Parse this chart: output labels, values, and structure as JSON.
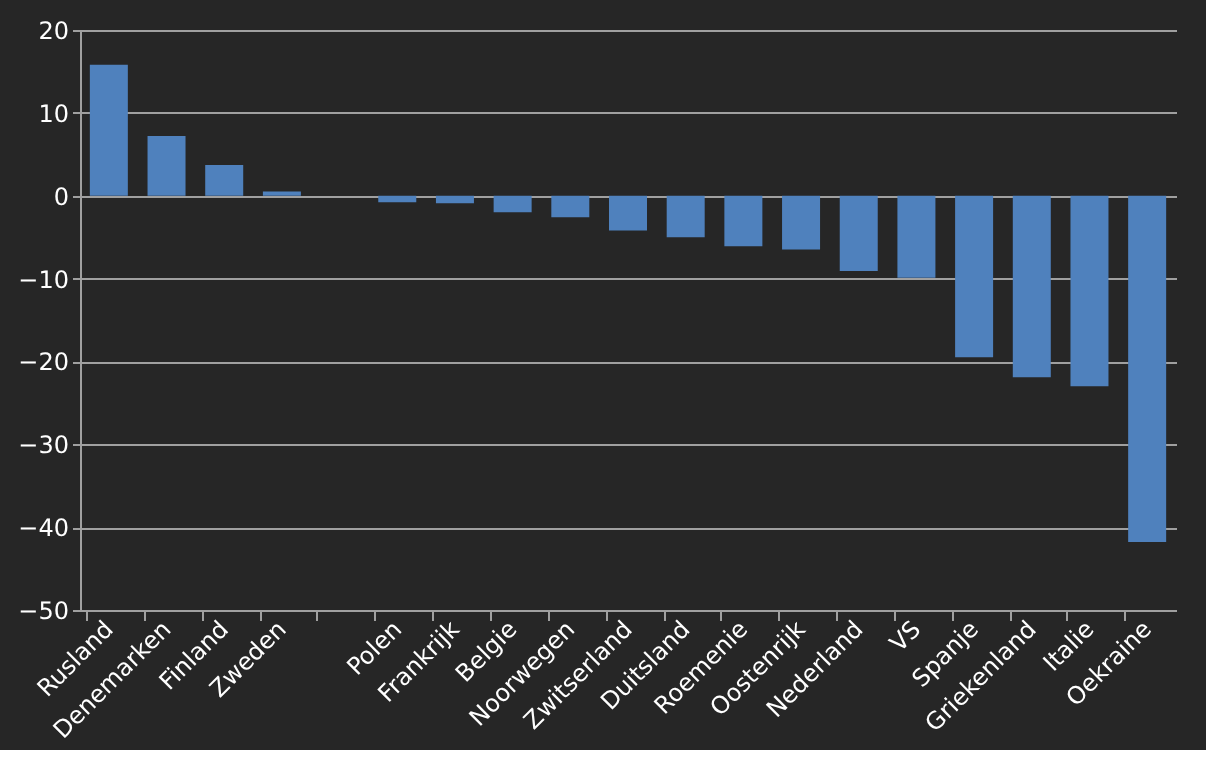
{
  "chart_data": {
    "type": "bar",
    "categories": [
      "Rusland",
      "Denemarken",
      "Finland",
      "Zweden",
      null,
      "Polen",
      "Frankrijk",
      "Belgie",
      "Noorwegen",
      "Zwitserland",
      "Duitsland",
      "Roemenie",
      "Oostenrijk",
      "Nederland",
      "VS",
      "Spanje",
      "Griekenland",
      "Italie",
      "Oekraine"
    ],
    "values": [
      15.8,
      7.2,
      3.7,
      0.5,
      0,
      -0.8,
      -0.9,
      -2,
      -2.6,
      -4.2,
      -5,
      -6.1,
      -6.5,
      -9.1,
      -9.9,
      -19.5,
      -21.9,
      -23,
      -41.8
    ],
    "color": "#4f81bd",
    "ylim": [
      -50,
      20
    ],
    "yticks": [
      -50,
      -40,
      -30,
      -20,
      -10,
      0,
      10,
      20
    ],
    "grid": "y"
  }
}
